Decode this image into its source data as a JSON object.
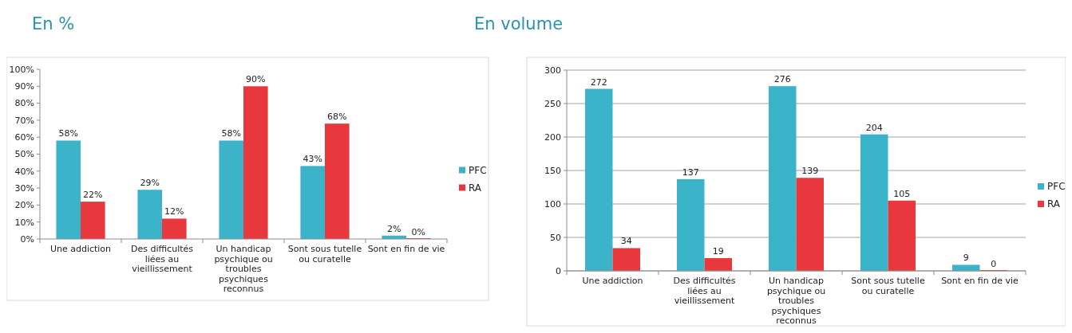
{
  "chart_data": [
    {
      "type": "bar",
      "title": "En %",
      "categories": [
        "Une addiction",
        "Des difficultés liées au vieillissement",
        "Un handicap psychique ou troubles psychiques reconnus",
        "Sont sous tutelle ou curatelle",
        "Sont en fin de vie"
      ],
      "series": [
        {
          "name": "PFC",
          "color": "#3bb3c9",
          "values": [
            58,
            29,
            58,
            43,
            2
          ],
          "value_labels": [
            "58%",
            "29%",
            "58%",
            "43%",
            "2%"
          ]
        },
        {
          "name": "RA",
          "color": "#e8383d",
          "values": [
            22,
            12,
            90,
            68,
            0
          ],
          "value_labels": [
            "22%",
            "12%",
            "90%",
            "68%",
            "0%"
          ]
        }
      ],
      "ylim": [
        0,
        100
      ],
      "yticks": [
        {
          "value": 0,
          "label": "0%"
        },
        {
          "value": 10,
          "label": "10%"
        },
        {
          "value": 20,
          "label": "20%"
        },
        {
          "value": 30,
          "label": "30%"
        },
        {
          "value": 40,
          "label": "40%"
        },
        {
          "value": 50,
          "label": "50%"
        },
        {
          "value": 60,
          "label": "60%"
        },
        {
          "value": 70,
          "label": "70%"
        },
        {
          "value": 80,
          "label": "80%"
        },
        {
          "value": 90,
          "label": "90%"
        },
        {
          "value": 100,
          "label": "100%"
        }
      ],
      "grid": false,
      "legend": "right"
    },
    {
      "type": "bar",
      "title": "En volume",
      "categories": [
        "Une addiction",
        "Des difficultés liées au vieillissement",
        "Un handicap psychique ou troubles psychiques reconnus",
        "Sont sous tutelle ou curatelle",
        "Sont en fin de vie"
      ],
      "series": [
        {
          "name": "PFC",
          "color": "#3bb3c9",
          "values": [
            272,
            137,
            276,
            204,
            9
          ]
        },
        {
          "name": "RA",
          "color": "#e8383d",
          "values": [
            34,
            19,
            139,
            105,
            0
          ]
        }
      ],
      "ylim": [
        0,
        300
      ],
      "yticks": [
        0,
        50,
        100,
        150,
        200,
        250,
        300
      ],
      "grid": "y",
      "legend": "right",
      "data_labels": true
    }
  ]
}
